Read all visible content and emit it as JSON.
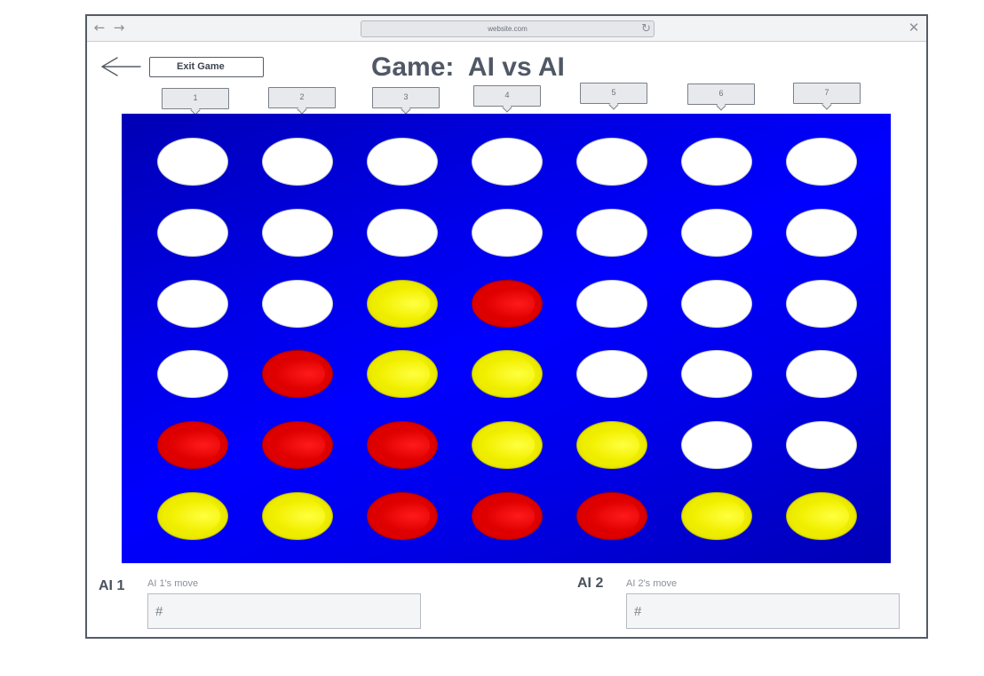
{
  "browser": {
    "url": "website.com",
    "back_icon": "arrow-left-icon",
    "forward_icon": "arrow-right-icon",
    "reload_icon": "reload-icon",
    "close_icon": "close-icon"
  },
  "header": {
    "back_icon": "arrow-left-icon",
    "exit_label": "Exit Game",
    "title": "Game:  AI vs AI"
  },
  "columns": [
    "1",
    "2",
    "3",
    "4",
    "5",
    "6",
    "7"
  ],
  "board": {
    "rows": [
      [
        "empty",
        "empty",
        "empty",
        "empty",
        "empty",
        "empty",
        "empty"
      ],
      [
        "empty",
        "empty",
        "empty",
        "empty",
        "empty",
        "empty",
        "empty"
      ],
      [
        "empty",
        "empty",
        "yellow",
        "red",
        "empty",
        "empty",
        "empty"
      ],
      [
        "empty",
        "red",
        "yellow",
        "yellow",
        "empty",
        "empty",
        "empty"
      ],
      [
        "red",
        "red",
        "red",
        "yellow",
        "yellow",
        "empty",
        "empty"
      ],
      [
        "yellow",
        "yellow",
        "red",
        "red",
        "red",
        "yellow",
        "yellow"
      ]
    ],
    "colors": {
      "board": "#0000ff",
      "red": "#ff0000",
      "yellow": "#ffff00",
      "empty": "#ffffff"
    }
  },
  "players": [
    {
      "label": "AI 1",
      "move_caption": "AI 1's move",
      "move_value": "",
      "move_placeholder": "#"
    },
    {
      "label": "AI 2",
      "move_caption": "AI 2's move",
      "move_value": "",
      "move_placeholder": "#"
    }
  ]
}
